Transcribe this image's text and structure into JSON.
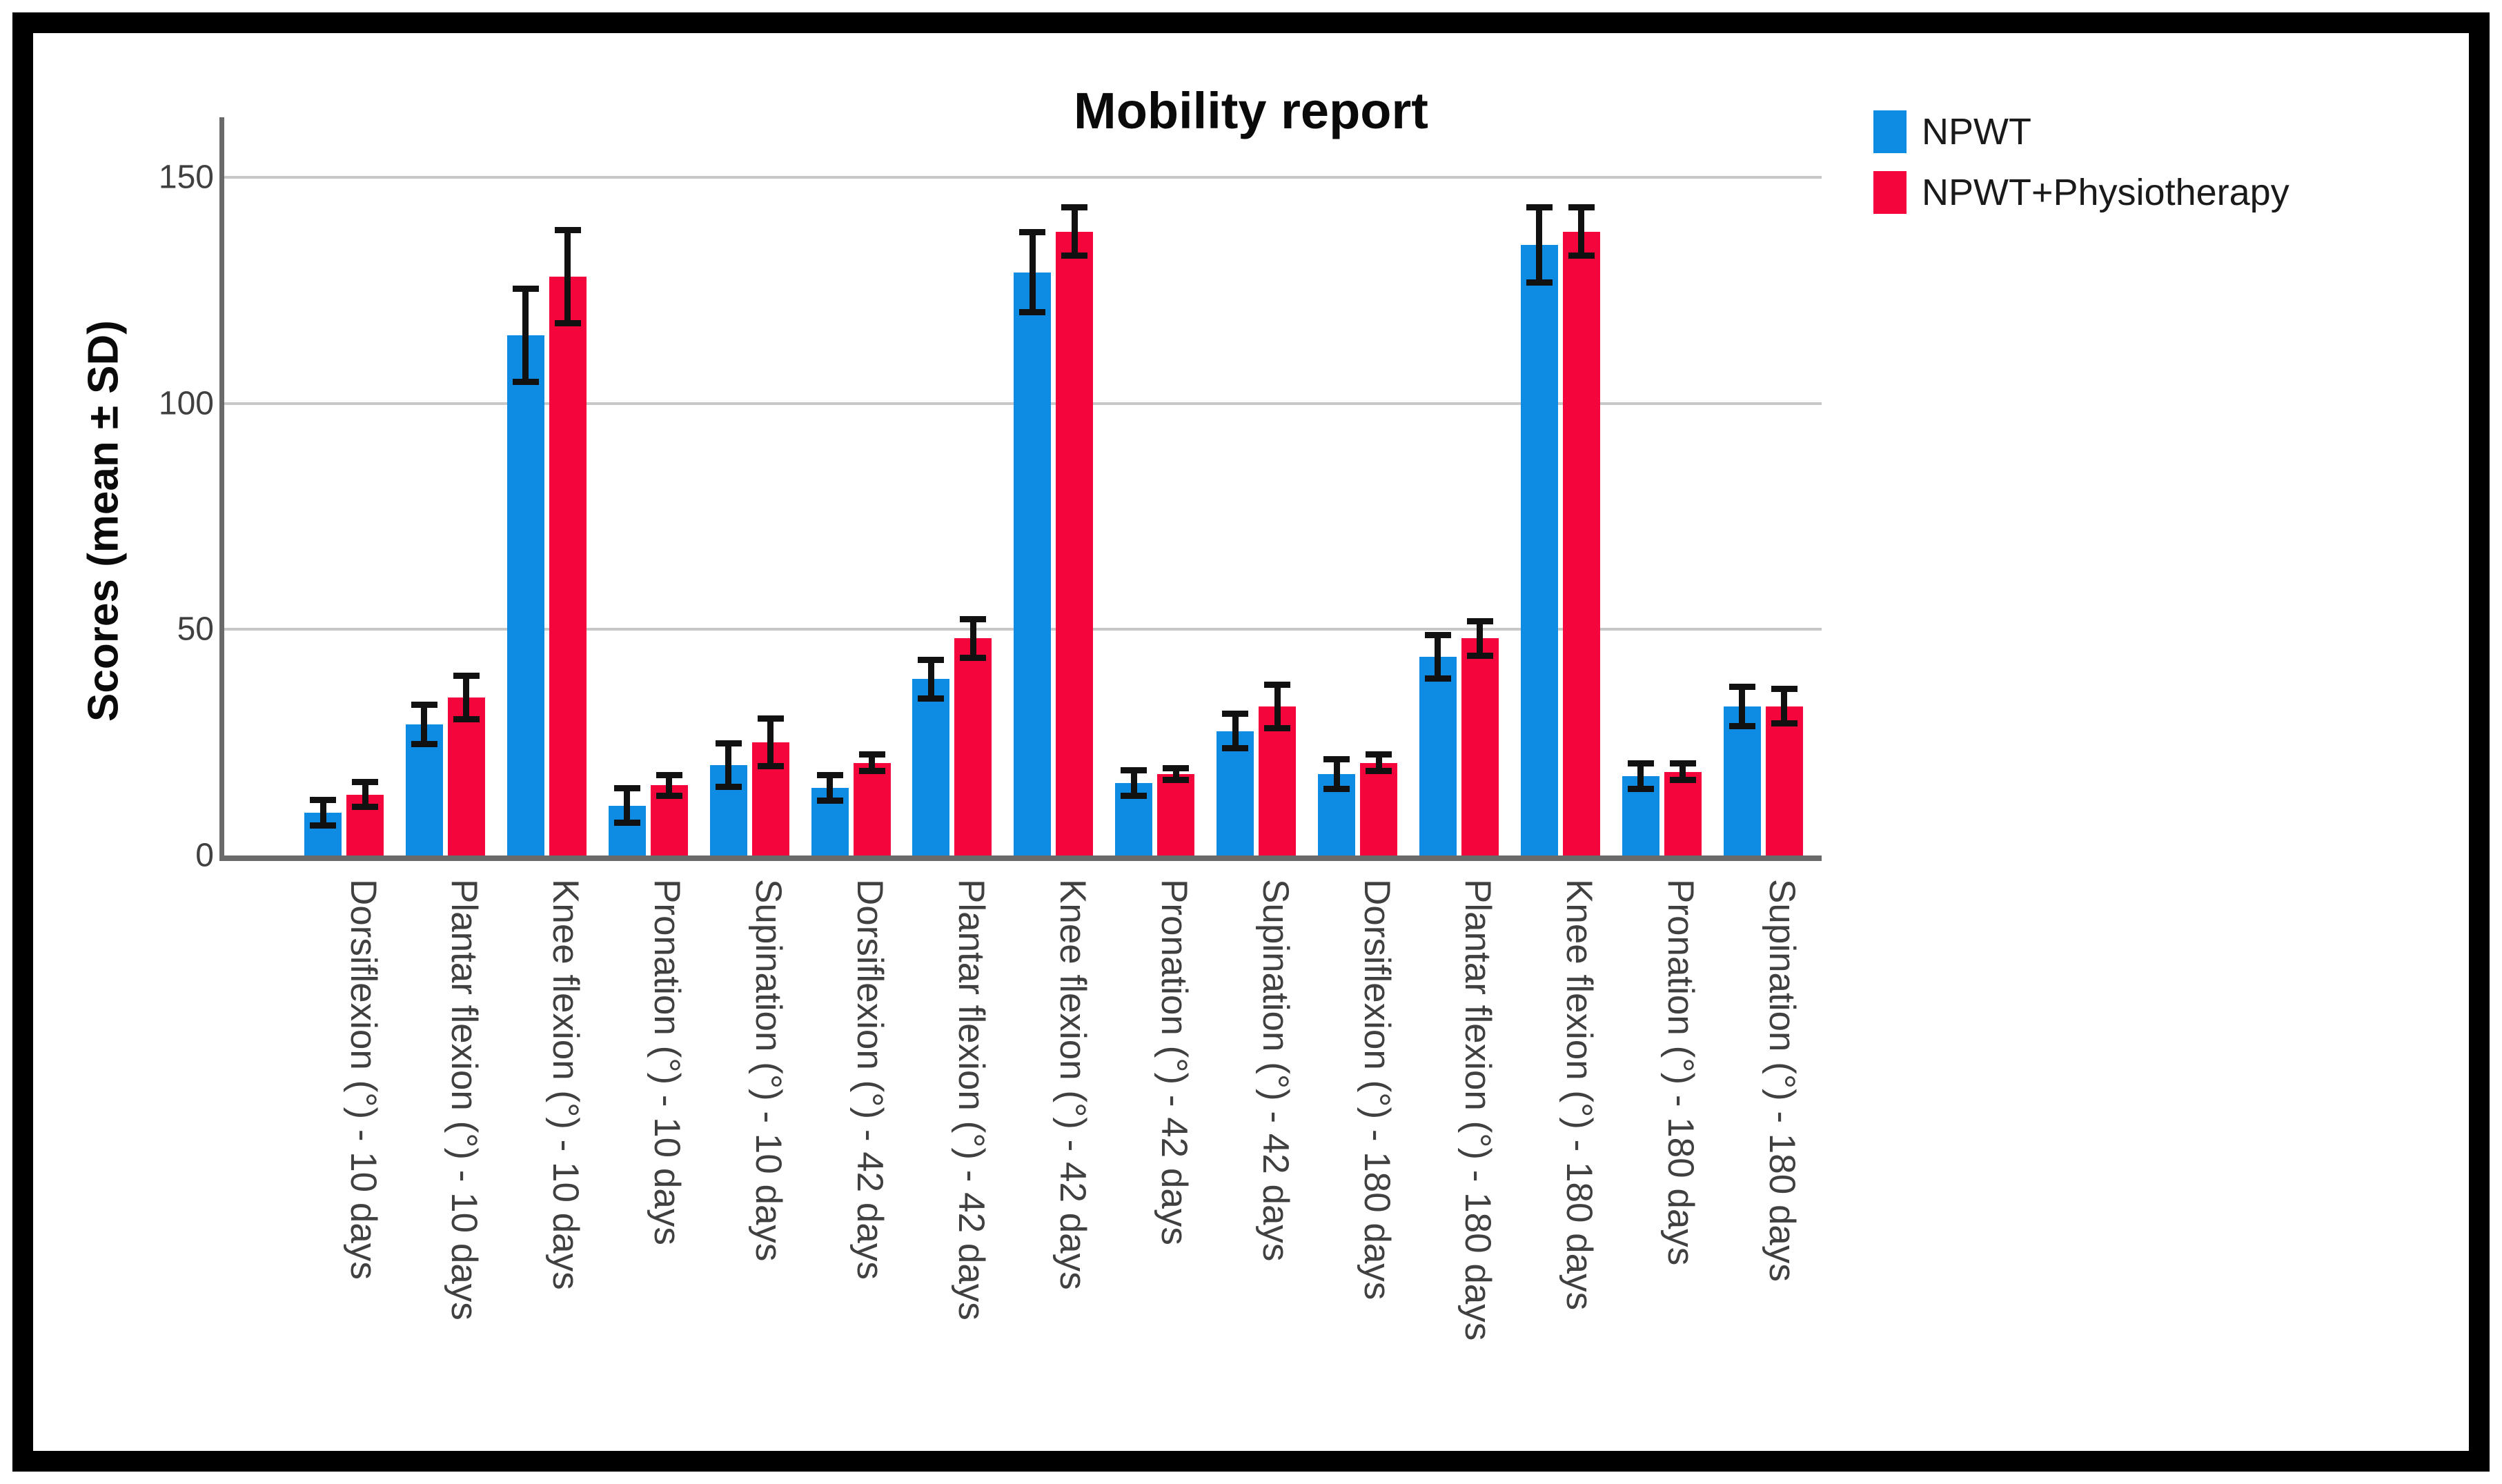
{
  "figure": {
    "title": "Mobility report"
  },
  "y_axis": {
    "label": "Scores (mean ± SD)",
    "ticks": [
      "0",
      "50",
      "100",
      "150"
    ]
  },
  "legend": {
    "items": [
      {
        "label": "NPWT",
        "color": "#0e8ce4"
      },
      {
        "label": "NPWT+Physiotherapy",
        "color": "#f4063c"
      }
    ]
  },
  "colors": {
    "bar_blue": "#0e8ce4",
    "bar_red": "#f4063c",
    "gridline": "#c8c8c8",
    "axis": "#6a6a6a",
    "error_bar": "#111111"
  },
  "chart_data": {
    "type": "bar",
    "title": "Mobility report",
    "xlabel": "",
    "ylabel": "Scores (mean ± SD)",
    "ylim": [
      0,
      163
    ],
    "yticks": [
      0,
      50,
      100,
      150
    ],
    "grid": true,
    "legend_position": "top-right",
    "error_bars": "± SD, both directions with caps",
    "categories": [
      "Dorsiflexion (°) - 10 days",
      "Plantar flexion (°) - 10 days",
      "Knee flexion (°) - 10 days",
      "Pronation (°) - 10 days",
      "Supination (°) - 10 days",
      "Dorsiflexion (°) - 42 days",
      "Plantar flexion (°) - 42 days",
      "Knee flexion (°) - 42 days",
      "Pronation (°) - 42 days",
      "Supination (°) - 42 days",
      "Dorsiflexion (°) - 180 days",
      "Plantar flexion (°) - 180 days",
      "Knee flexion (°) - 180 days",
      "Pronation (°) - 180 days",
      "Supination (°) - 180 days"
    ],
    "series": [
      {
        "name": "NPWT",
        "color": "#0e8ce4",
        "values": [
          9.5,
          29,
          115,
          11,
          20,
          15,
          39,
          129,
          16,
          27.5,
          18,
          44,
          135,
          17.5,
          33
        ],
        "sd": [
          3.5,
          5,
          11,
          4.5,
          5.5,
          3.5,
          5,
          9.5,
          3.5,
          4.5,
          4,
          5.5,
          9,
          3.5,
          5
        ]
      },
      {
        "name": "NPWT+Physiotherapy",
        "color": "#f4063c",
        "values": [
          13.5,
          35,
          128,
          15.5,
          25,
          20.5,
          48,
          138,
          18,
          33,
          20.5,
          48,
          138,
          18.5,
          33
        ],
        "sd": [
          3.5,
          5.5,
          11,
          3,
          6,
          2.5,
          5,
          6,
          2,
          5.5,
          2.5,
          4.5,
          6,
          2.5,
          4.5
        ]
      }
    ]
  }
}
